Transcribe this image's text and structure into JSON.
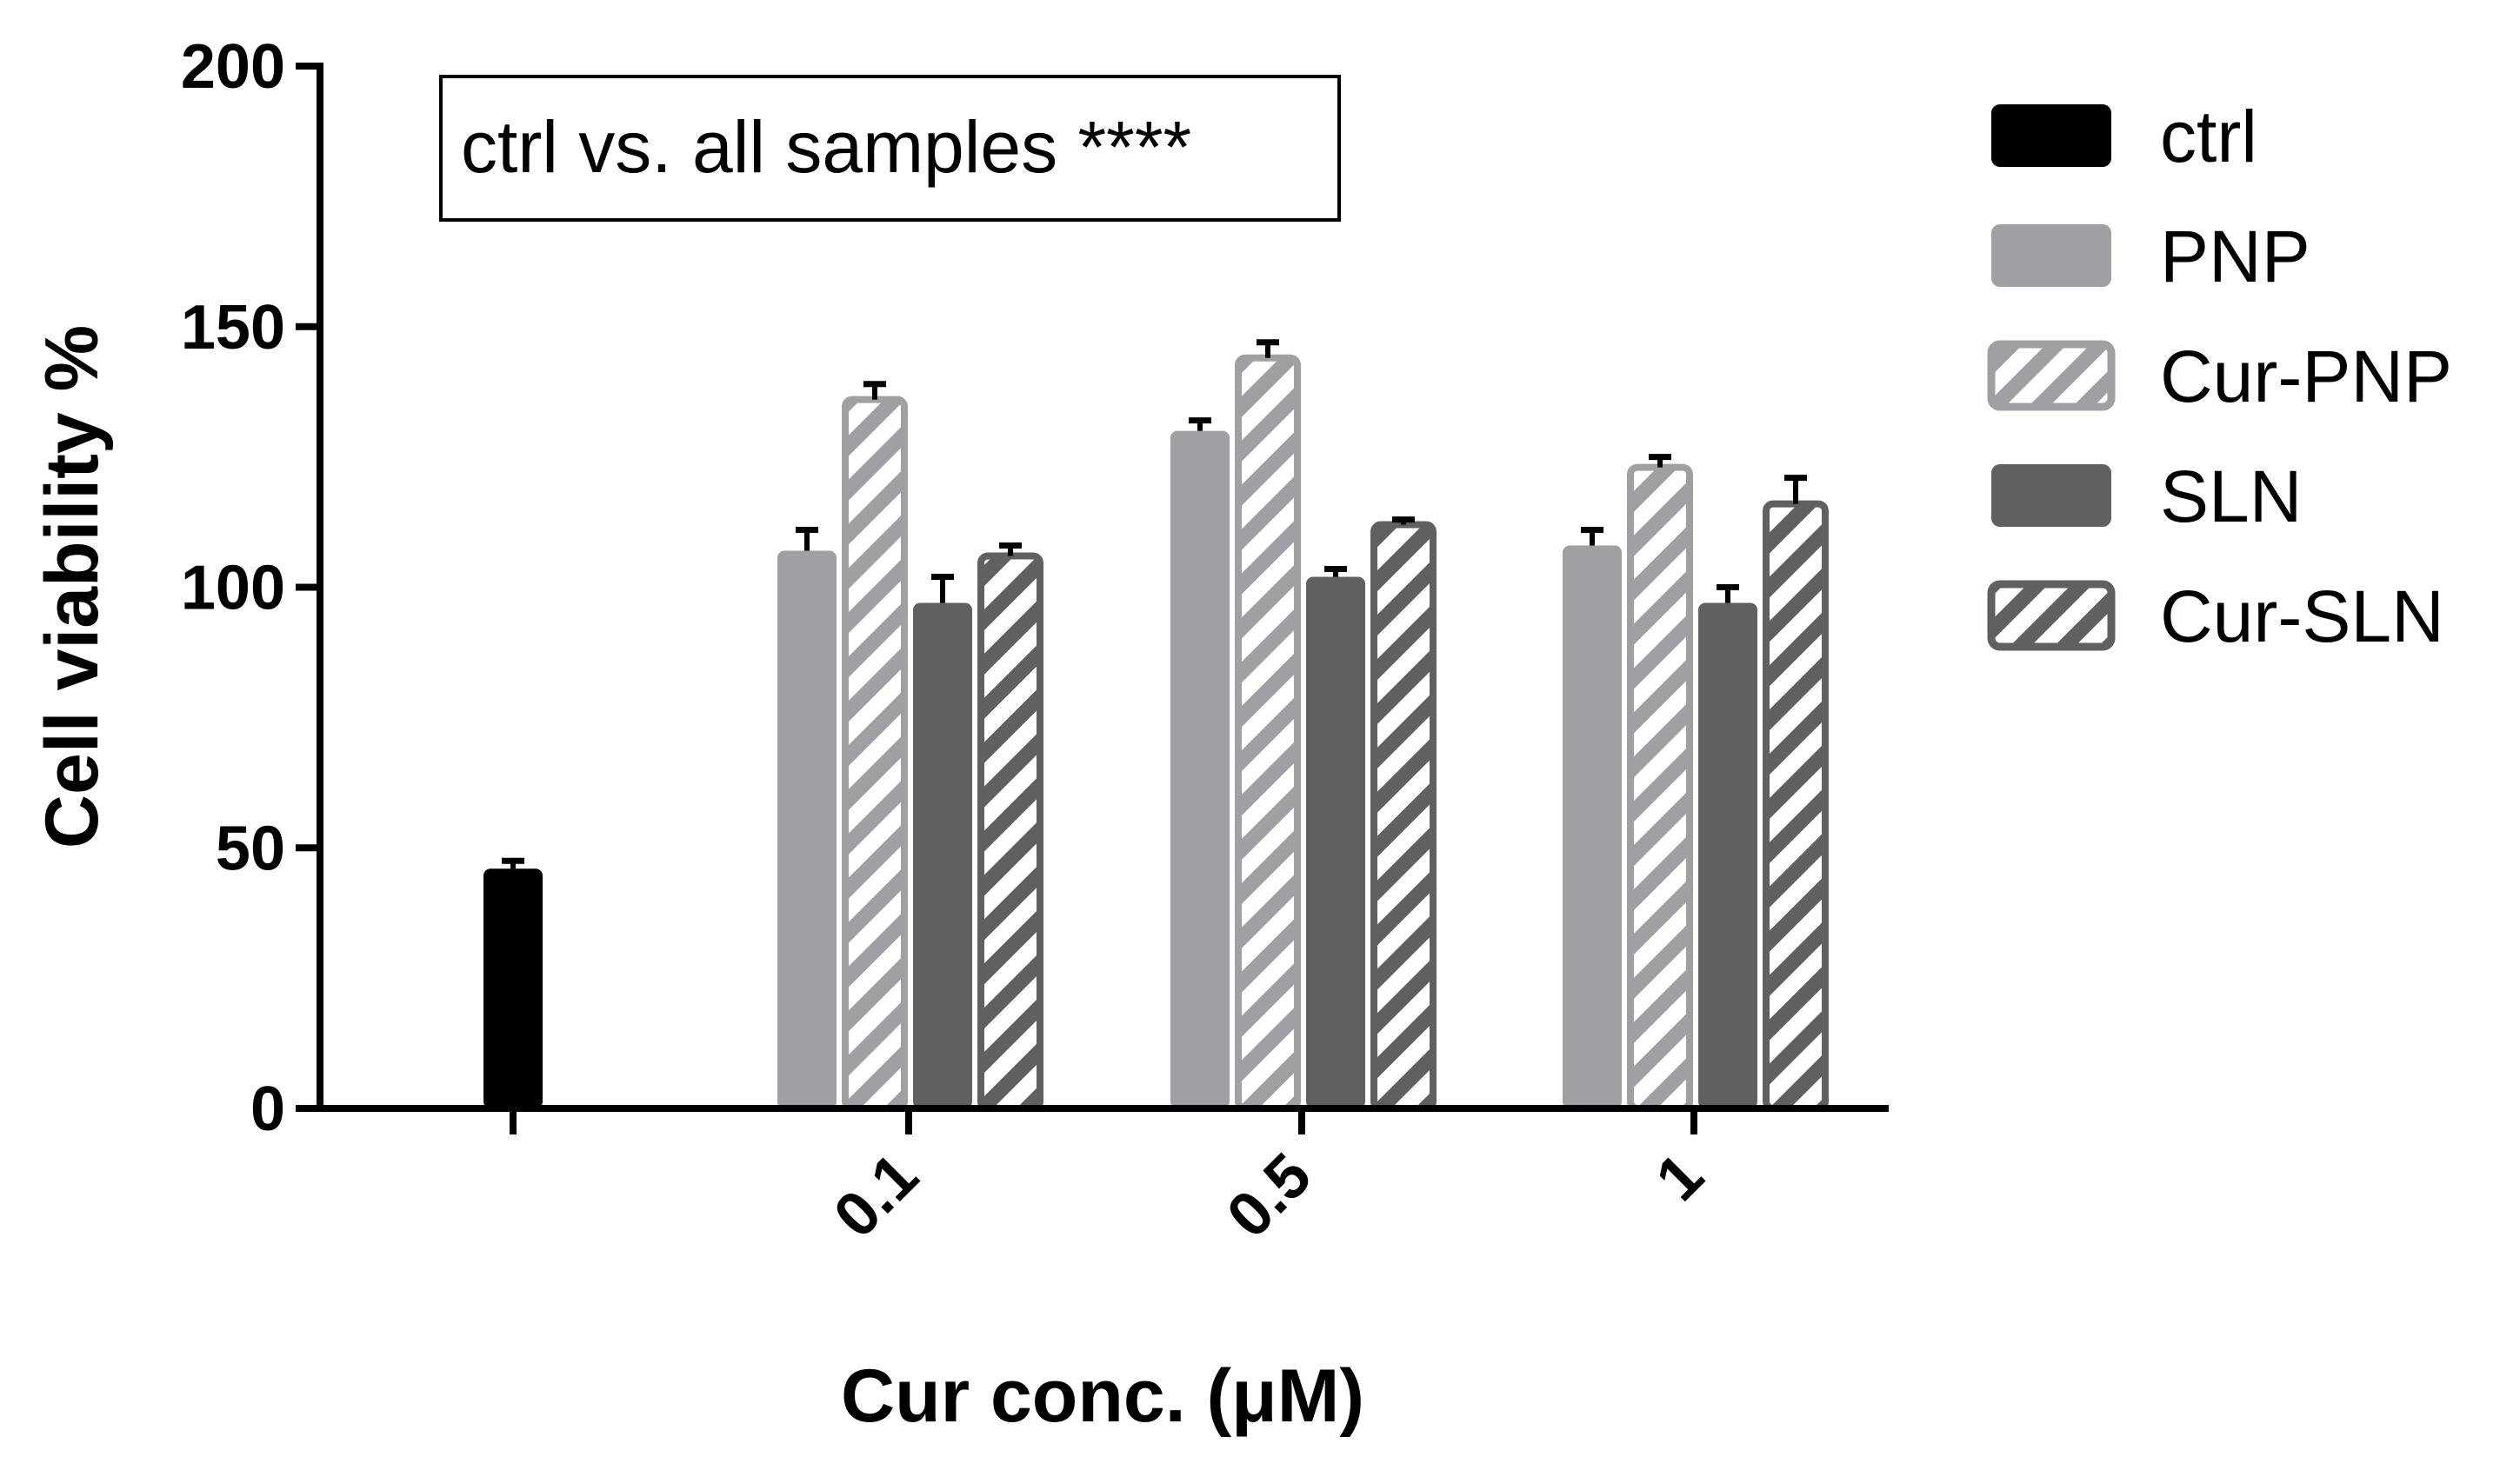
{
  "chart_data": {
    "type": "bar",
    "xlabel": "Cur conc. (μM)",
    "ylabel": "Cell viability %",
    "ylim": [
      0,
      200
    ],
    "yticks": [
      "0",
      "50",
      "100",
      "150",
      "200"
    ],
    "annotation": "ctrl vs. all samples ****",
    "categories": [
      "",
      "0.1",
      "0.5",
      "1"
    ],
    "series": [
      {
        "name": "ctrl",
        "color": "#000000",
        "hatch": false,
        "values": [
          46,
          null,
          null,
          null
        ],
        "errors": [
          1.5,
          null,
          null,
          null
        ]
      },
      {
        "name": "PNP",
        "color": "#a0a0a4",
        "hatch": false,
        "values": [
          null,
          107,
          130,
          108
        ],
        "errors": [
          null,
          4,
          2,
          3
        ]
      },
      {
        "name": "Cur-PNP",
        "color": "#a0a0a4",
        "hatch": true,
        "values": [
          null,
          136,
          144,
          123
        ],
        "errors": [
          null,
          3,
          3,
          2
        ]
      },
      {
        "name": "SLN",
        "color": "#606060",
        "hatch": false,
        "values": [
          null,
          97,
          102,
          97
        ],
        "errors": [
          null,
          5,
          1.5,
          3
        ]
      },
      {
        "name": "Cur-SLN",
        "color": "#606060",
        "hatch": true,
        "values": [
          null,
          106,
          112,
          116
        ],
        "errors": [
          null,
          2,
          1,
          5
        ]
      }
    ]
  }
}
